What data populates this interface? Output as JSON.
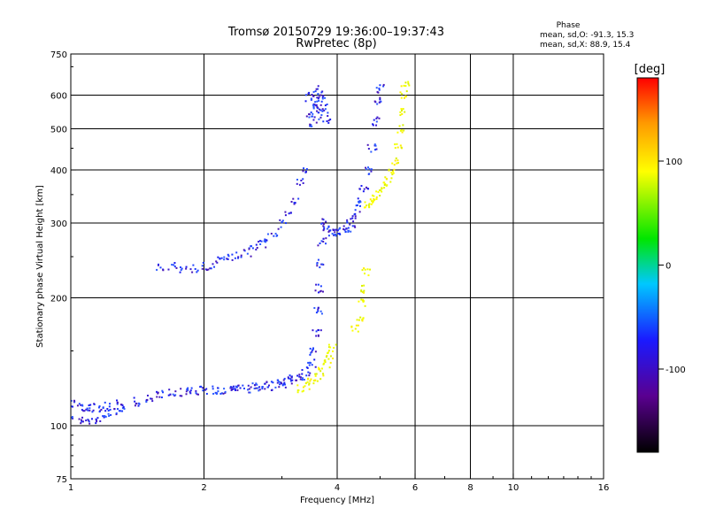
{
  "chart_data": {
    "type": "scatter",
    "title": "Tromsø 20150729 19:36:00–19:37:43",
    "subtitle": "RwPretec (8p)",
    "xlabel": "Frequency [MHz]",
    "ylabel": "Stationary phase Virtual Height [km]",
    "xscale": "log",
    "yscale": "log",
    "xlim": [
      1,
      16
    ],
    "ylim": [
      75,
      750
    ],
    "xticks": [
      1,
      2,
      4,
      6,
      8,
      10,
      16
    ],
    "yticks": [
      75,
      100,
      200,
      300,
      400,
      500,
      600,
      750
    ],
    "x_gridlines": [
      2,
      4,
      6,
      8,
      10
    ],
    "y_gridlines": [
      100,
      200,
      300,
      400,
      500,
      600
    ],
    "grid": true,
    "stats": {
      "title": "Phase",
      "line_o": "mean, sd,O:  -91.3, 15.3",
      "line_x": "mean, sd,X:  88.9, 15.4"
    },
    "colorbar": {
      "label": "[deg]",
      "range": [
        -180,
        180
      ],
      "ticks": [
        {
          "value": 100,
          "label": "100"
        },
        {
          "value": 0,
          "label": "0"
        },
        {
          "value": -100,
          "label": "-100"
        }
      ],
      "colormap": "rainbow"
    },
    "series": [
      {
        "mode": "O",
        "phase_mean": -91.3,
        "trace": [
          [
            1.0,
            112
          ],
          [
            1.05,
            111
          ],
          [
            1.1,
            110
          ],
          [
            1.15,
            110
          ],
          [
            1.2,
            111
          ],
          [
            1.3,
            112
          ],
          [
            1.4,
            114
          ],
          [
            1.5,
            116
          ],
          [
            1.6,
            118
          ],
          [
            1.7,
            119
          ],
          [
            1.8,
            120
          ],
          [
            1.9,
            120
          ],
          [
            2.0,
            121
          ],
          [
            2.1,
            121
          ],
          [
            2.2,
            121
          ],
          [
            2.3,
            122
          ],
          [
            2.4,
            122
          ],
          [
            2.5,
            122
          ],
          [
            2.6,
            123
          ],
          [
            2.7,
            123
          ],
          [
            2.8,
            124
          ],
          [
            2.9,
            125
          ],
          [
            3.0,
            126
          ],
          [
            3.1,
            127
          ],
          [
            3.2,
            129
          ],
          [
            3.3,
            131
          ],
          [
            3.4,
            134
          ],
          [
            3.5,
            140
          ],
          [
            3.55,
            150
          ],
          [
            3.6,
            165
          ],
          [
            3.62,
            185
          ],
          [
            3.65,
            210
          ],
          [
            3.68,
            240
          ],
          [
            3.7,
            270
          ],
          [
            3.75,
            300
          ],
          [
            3.8,
            290
          ],
          [
            3.9,
            285
          ],
          [
            4.0,
            285
          ],
          [
            4.1,
            288
          ],
          [
            4.2,
            292
          ],
          [
            4.3,
            300
          ],
          [
            4.4,
            315
          ],
          [
            4.5,
            335
          ],
          [
            4.6,
            360
          ],
          [
            4.7,
            400
          ],
          [
            4.8,
            450
          ],
          [
            4.9,
            520
          ],
          [
            4.95,
            580
          ],
          [
            5.0,
            620
          ]
        ],
        "low_trace": [
          [
            1.0,
            105
          ],
          [
            1.05,
            103
          ],
          [
            1.1,
            102
          ],
          [
            1.15,
            103
          ],
          [
            1.2,
            105
          ],
          [
            1.25,
            108
          ],
          [
            1.3,
            110
          ]
        ],
        "f2_trace": [
          [
            1.6,
            238
          ],
          [
            1.7,
            236
          ],
          [
            1.8,
            234
          ],
          [
            1.9,
            235
          ],
          [
            2.0,
            237
          ],
          [
            2.1,
            240
          ],
          [
            2.2,
            244
          ],
          [
            2.3,
            248
          ],
          [
            2.4,
            252
          ],
          [
            2.5,
            256
          ],
          [
            2.6,
            262
          ],
          [
            2.7,
            268
          ],
          [
            2.8,
            276
          ],
          [
            2.9,
            286
          ],
          [
            3.0,
            298
          ],
          [
            3.1,
            315
          ],
          [
            3.2,
            340
          ],
          [
            3.3,
            375
          ],
          [
            3.35,
            400
          ]
        ],
        "upper_cluster": [
          [
            3.5,
            520
          ],
          [
            3.55,
            540
          ],
          [
            3.6,
            560
          ],
          [
            3.65,
            575
          ],
          [
            3.7,
            555
          ],
          [
            3.75,
            530
          ],
          [
            3.5,
            585
          ],
          [
            3.55,
            600
          ],
          [
            3.6,
            610
          ],
          [
            3.65,
            590
          ]
        ]
      },
      {
        "mode": "X",
        "phase_mean": 88.9,
        "trace": [
          [
            3.3,
            122
          ],
          [
            3.4,
            124
          ],
          [
            3.5,
            127
          ],
          [
            3.6,
            130
          ],
          [
            3.7,
            134
          ],
          [
            3.8,
            140
          ],
          [
            3.85,
            146
          ],
          [
            3.9,
            152
          ],
          [
            4.4,
            170
          ],
          [
            4.5,
            180
          ],
          [
            4.55,
            195
          ],
          [
            4.6,
            210
          ],
          [
            4.65,
            230
          ],
          [
            4.7,
            330
          ],
          [
            4.8,
            338
          ],
          [
            4.9,
            346
          ],
          [
            5.0,
            355
          ],
          [
            5.1,
            365
          ],
          [
            5.2,
            378
          ],
          [
            5.3,
            395
          ],
          [
            5.4,
            420
          ],
          [
            5.5,
            460
          ],
          [
            5.55,
            500
          ],
          [
            5.6,
            550
          ],
          [
            5.65,
            600
          ],
          [
            5.7,
            640
          ]
        ]
      }
    ]
  }
}
